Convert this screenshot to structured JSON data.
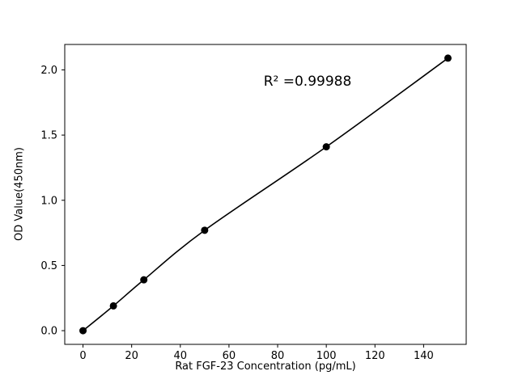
{
  "chart_data": {
    "type": "scatter",
    "title": "",
    "xlabel": "Rat FGF-23 Concentration (pg/mL)",
    "ylabel": "OD Value(450nm)",
    "annotation": "R² =0.99988",
    "x": [
      0,
      12.5,
      25,
      50,
      100,
      150
    ],
    "y": [
      0.0,
      0.19,
      0.39,
      0.77,
      1.41,
      2.09
    ],
    "fit_line": true,
    "xlim": [
      -7.5,
      157.5
    ],
    "ylim": [
      -0.105,
      2.195
    ],
    "xticks": [
      0,
      20,
      40,
      60,
      80,
      100,
      120,
      140
    ],
    "yticks": [
      0.0,
      0.5,
      1.0,
      1.5,
      2.0
    ],
    "grid": false,
    "legend": null,
    "marker_color": "#000000",
    "line_color": "#000000",
    "background_color": "#ffffff"
  }
}
